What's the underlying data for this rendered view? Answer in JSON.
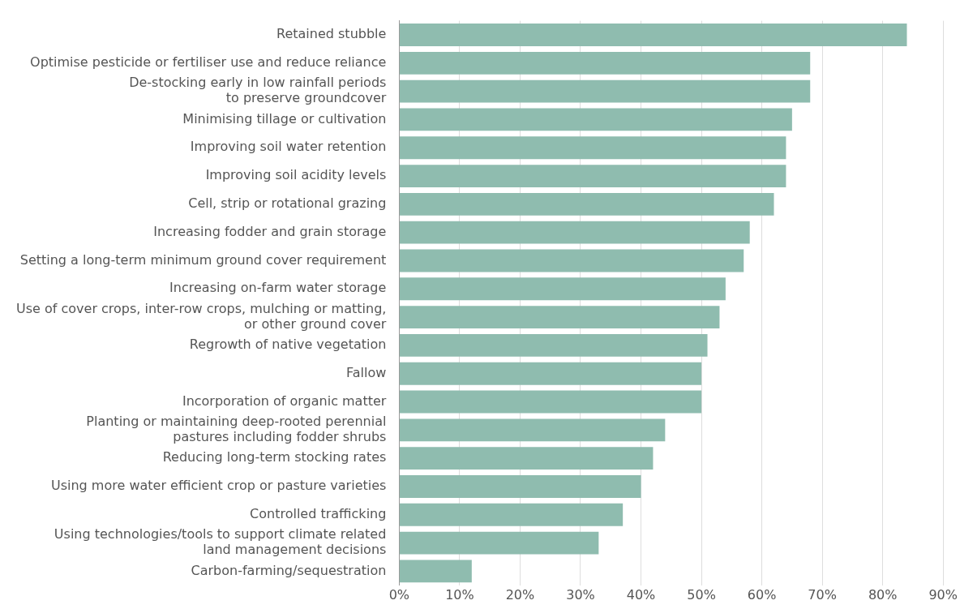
{
  "chart_data": {
    "type": "bar",
    "orientation": "horizontal",
    "categories": [
      "Retained stubble",
      "Optimise pesticide or fertiliser use and reduce reliance",
      "De-stocking early in low rainfall periods\nto preserve groundcover",
      "Minimising tillage or cultivation",
      "Improving soil water retention",
      "Improving soil acidity levels",
      "Cell, strip or rotational grazing",
      "Increasing fodder and grain storage",
      "Setting a long-term minimum ground cover requirement",
      "Increasing on-farm water storage",
      "Use of cover crops, inter-row crops, mulching or matting,\nor other ground cover",
      "Regrowth of native vegetation",
      "Fallow",
      "Incorporation of organic matter",
      "Planting or maintaining deep-rooted perennial\npastures including fodder shrubs",
      "Reducing long-term stocking rates",
      "Using more water efficient crop or pasture varieties",
      "Controlled trafficking",
      "Using technologies/tools to support climate related\nland management decisions",
      "Carbon-farming/sequestration"
    ],
    "values": [
      84,
      68,
      68,
      65,
      64,
      64,
      62,
      58,
      57,
      54,
      53,
      51,
      50,
      50,
      44,
      42,
      40,
      37,
      33,
      12
    ],
    "color": "#8fbcaf",
    "xlim": [
      0,
      90
    ],
    "xticks": [
      {
        "value": 0,
        "label": "0%"
      },
      {
        "value": 10,
        "label": "10%"
      },
      {
        "value": 20,
        "label": "20%"
      },
      {
        "value": 30,
        "label": "30%"
      },
      {
        "value": 40,
        "label": "40%"
      },
      {
        "value": 50,
        "label": "50%"
      },
      {
        "value": 60,
        "label": "60%"
      },
      {
        "value": 70,
        "label": "70%"
      },
      {
        "value": 80,
        "label": "80%"
      },
      {
        "value": 90,
        "label": "90%"
      }
    ],
    "grid": "x",
    "legend": false
  }
}
